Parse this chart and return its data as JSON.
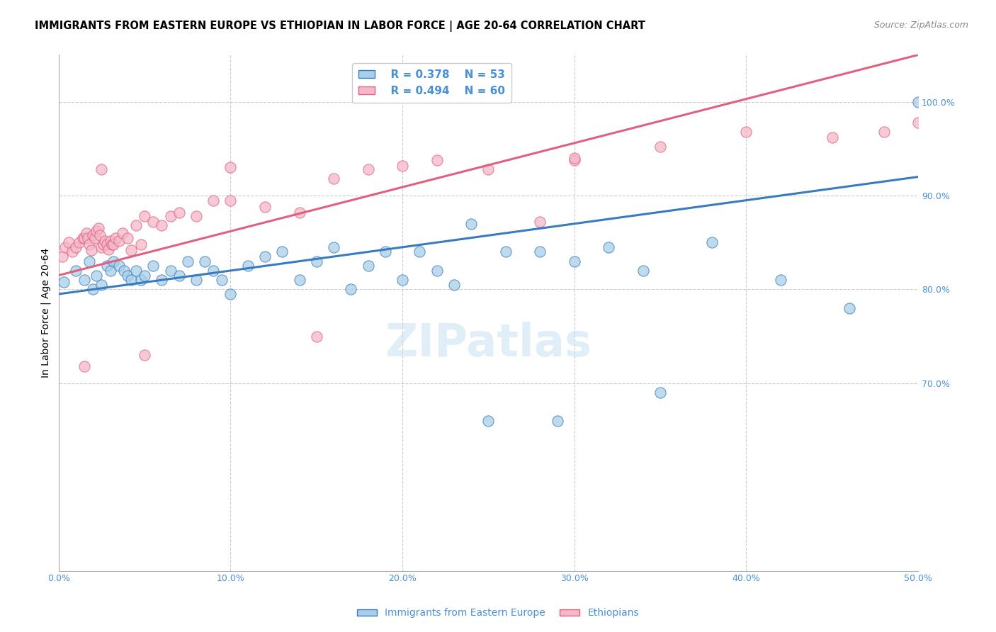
{
  "title": "IMMIGRANTS FROM EASTERN EUROPE VS ETHIOPIAN IN LABOR FORCE | AGE 20-64 CORRELATION CHART",
  "source": "Source: ZipAtlas.com",
  "ylabel": "In Labor Force | Age 20-64",
  "xlim": [
    0.0,
    0.5
  ],
  "ylim": [
    0.5,
    1.05
  ],
  "x_ticks": [
    0.0,
    0.1,
    0.2,
    0.3,
    0.4,
    0.5
  ],
  "x_tick_labels": [
    "0.0%",
    "10.0%",
    "20.0%",
    "30.0%",
    "40.0%",
    "50.0%"
  ],
  "y_ticks_right": [
    0.7,
    0.8,
    0.9,
    1.0
  ],
  "y_tick_labels_right": [
    "70.0%",
    "80.0%",
    "90.0%",
    "100.0%"
  ],
  "watermark": "ZIPatlas",
  "legend_r1": "R = 0.378",
  "legend_n1": "N = 53",
  "legend_r2": "R = 0.494",
  "legend_n2": "N = 60",
  "color_blue": "#a8cfe8",
  "color_pink": "#f4b8c8",
  "color_blue_line": "#3a7bbf",
  "color_pink_line": "#e06080",
  "color_blue_text": "#4a90d9",
  "color_label_blue": "#4a90d9",
  "blue_scatter_x": [
    0.003,
    0.01,
    0.015,
    0.018,
    0.02,
    0.022,
    0.025,
    0.028,
    0.03,
    0.032,
    0.035,
    0.038,
    0.04,
    0.042,
    0.045,
    0.048,
    0.05,
    0.055,
    0.06,
    0.065,
    0.07,
    0.075,
    0.08,
    0.085,
    0.09,
    0.095,
    0.1,
    0.11,
    0.12,
    0.13,
    0.14,
    0.15,
    0.16,
    0.17,
    0.18,
    0.19,
    0.2,
    0.21,
    0.22,
    0.23,
    0.24,
    0.26,
    0.28,
    0.3,
    0.32,
    0.34,
    0.38,
    0.42,
    0.46,
    0.5,
    0.25,
    0.29,
    0.35
  ],
  "blue_scatter_y": [
    0.808,
    0.82,
    0.81,
    0.83,
    0.8,
    0.815,
    0.805,
    0.825,
    0.82,
    0.83,
    0.825,
    0.82,
    0.815,
    0.81,
    0.82,
    0.81,
    0.815,
    0.825,
    0.81,
    0.82,
    0.815,
    0.83,
    0.81,
    0.83,
    0.82,
    0.81,
    0.795,
    0.825,
    0.835,
    0.84,
    0.81,
    0.83,
    0.845,
    0.8,
    0.825,
    0.84,
    0.81,
    0.84,
    0.82,
    0.805,
    0.87,
    0.84,
    0.84,
    0.83,
    0.845,
    0.82,
    0.85,
    0.81,
    0.78,
    1.0,
    0.66,
    0.66,
    0.69
  ],
  "pink_scatter_x": [
    0.002,
    0.004,
    0.006,
    0.008,
    0.01,
    0.012,
    0.014,
    0.015,
    0.016,
    0.017,
    0.018,
    0.019,
    0.02,
    0.021,
    0.022,
    0.023,
    0.024,
    0.025,
    0.026,
    0.027,
    0.028,
    0.029,
    0.03,
    0.031,
    0.032,
    0.033,
    0.035,
    0.037,
    0.04,
    0.042,
    0.045,
    0.048,
    0.05,
    0.055,
    0.06,
    0.065,
    0.07,
    0.08,
    0.09,
    0.1,
    0.12,
    0.14,
    0.16,
    0.18,
    0.2,
    0.22,
    0.25,
    0.28,
    0.3,
    0.35,
    0.4,
    0.45,
    0.48,
    0.5,
    0.015,
    0.025,
    0.05,
    0.1,
    0.15,
    0.3
  ],
  "pink_scatter_y": [
    0.835,
    0.845,
    0.85,
    0.84,
    0.845,
    0.85,
    0.855,
    0.855,
    0.86,
    0.855,
    0.848,
    0.842,
    0.858,
    0.855,
    0.862,
    0.865,
    0.858,
    0.845,
    0.848,
    0.852,
    0.848,
    0.843,
    0.852,
    0.848,
    0.848,
    0.855,
    0.852,
    0.86,
    0.855,
    0.842,
    0.868,
    0.848,
    0.878,
    0.872,
    0.868,
    0.878,
    0.882,
    0.878,
    0.895,
    0.895,
    0.888,
    0.882,
    0.918,
    0.928,
    0.932,
    0.938,
    0.928,
    0.872,
    0.938,
    0.952,
    0.968,
    0.962,
    0.968,
    0.978,
    0.718,
    0.928,
    0.73,
    0.93,
    0.75,
    0.94
  ]
}
